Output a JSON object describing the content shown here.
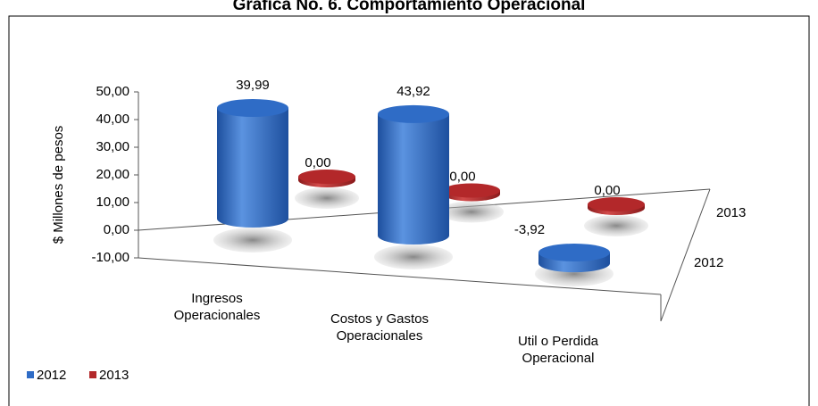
{
  "chart_data": {
    "type": "bar3d",
    "title": "Grafica No. 6. Comportamiento Operacional",
    "y_label": "$ Millones de pesos",
    "categories": [
      "Ingresos Operacionales",
      "Costos y Gastos Operacionales",
      "Util o Perdida Operacional"
    ],
    "series": [
      {
        "name": "2012",
        "color": "#2f6cc6",
        "values": [
          39.99,
          43.92,
          -3.92
        ],
        "value_labels": [
          "39,99",
          "43,92",
          "-3,92"
        ]
      },
      {
        "name": "2013",
        "color": "#b3282a",
        "values": [
          0,
          0,
          0
        ],
        "value_labels": [
          "0,00",
          "0,00",
          "0,00"
        ]
      }
    ],
    "ylim": [
      -10,
      50
    ],
    "yticks": [
      {
        "value": -10,
        "label": "-10,00"
      },
      {
        "value": 0,
        "label": "0,00"
      },
      {
        "value": 10,
        "label": "10,00"
      },
      {
        "value": 20,
        "label": "20,00"
      },
      {
        "value": 30,
        "label": "30,00"
      },
      {
        "value": 40,
        "label": "40,00"
      },
      {
        "value": 50,
        "label": "50,00"
      }
    ],
    "legend": "bottom-left"
  }
}
